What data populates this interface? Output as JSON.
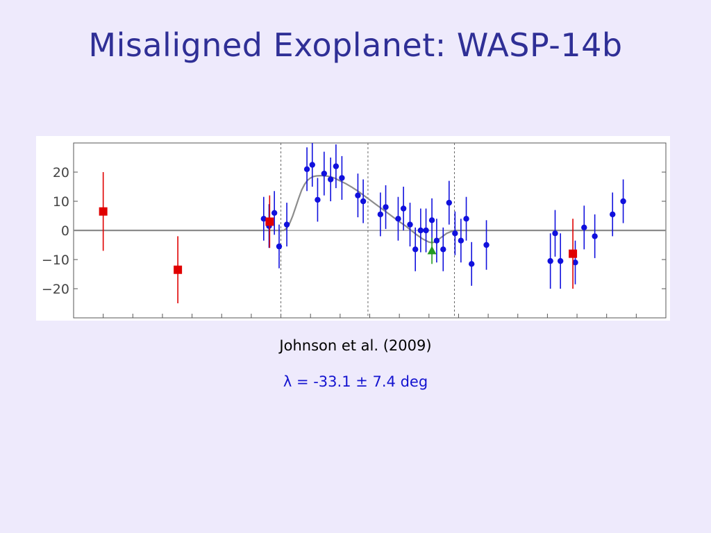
{
  "slide": {
    "title": "Misaligned Exoplanet: WASP-14b",
    "citation": "Johnson et al. (2009)",
    "lambda_text": "λ = -33.1 ± 7.4 deg"
  },
  "chart_data": {
    "type": "scatter",
    "title": "",
    "xlabel": "",
    "ylabel": "",
    "x_range": [
      0,
      100
    ],
    "ylim": [
      -30,
      30
    ],
    "yticks": [
      20,
      10,
      0,
      -10,
      -20
    ],
    "ytick_labels": [
      "20",
      "10",
      "0",
      "−10",
      "−20"
    ],
    "reference_lines_x": [
      35,
      49.7,
      64.3
    ],
    "baseline_y": 0,
    "colors": {
      "blue_points": "#1010dd",
      "red_points": "#e00000",
      "green_point": "#229922",
      "model_curve": "#8c8c8c",
      "reference_lines": "#666666"
    },
    "series": [
      {
        "marker": "circle",
        "color": "#1010dd",
        "points": [
          {
            "x": 32.1,
            "y": 4.0,
            "err": 7.5
          },
          {
            "x": 33.0,
            "y": 1.5,
            "err": 7.5
          },
          {
            "x": 33.9,
            "y": 6.0,
            "err": 7.5
          },
          {
            "x": 34.7,
            "y": -5.5,
            "err": 7.5
          },
          {
            "x": 36.0,
            "y": 2.0,
            "err": 7.5
          },
          {
            "x": 39.4,
            "y": 21.0,
            "err": 7.5
          },
          {
            "x": 40.3,
            "y": 22.5,
            "err": 7.5
          },
          {
            "x": 41.2,
            "y": 10.5,
            "err": 7.5
          },
          {
            "x": 42.3,
            "y": 19.5,
            "err": 7.5
          },
          {
            "x": 43.4,
            "y": 17.5,
            "err": 7.5
          },
          {
            "x": 44.3,
            "y": 22.0,
            "err": 7.5
          },
          {
            "x": 45.3,
            "y": 18.0,
            "err": 7.5
          },
          {
            "x": 48.0,
            "y": 12.0,
            "err": 7.5
          },
          {
            "x": 48.9,
            "y": 10.0,
            "err": 7.5
          },
          {
            "x": 51.8,
            "y": 5.5,
            "err": 7.5
          },
          {
            "x": 52.7,
            "y": 8.0,
            "err": 7.5
          },
          {
            "x": 54.8,
            "y": 4.0,
            "err": 7.5
          },
          {
            "x": 55.7,
            "y": 7.5,
            "err": 7.5
          },
          {
            "x": 56.8,
            "y": 2.0,
            "err": 7.5
          },
          {
            "x": 57.7,
            "y": -6.5,
            "err": 7.5
          },
          {
            "x": 58.6,
            "y": 0.0,
            "err": 7.5
          },
          {
            "x": 59.5,
            "y": 0.0,
            "err": 7.5
          },
          {
            "x": 60.5,
            "y": 3.5,
            "err": 7.5
          },
          {
            "x": 61.3,
            "y": -3.5,
            "err": 7.5
          },
          {
            "x": 62.4,
            "y": -6.5,
            "err": 7.5
          },
          {
            "x": 63.4,
            "y": 9.5,
            "err": 7.5
          },
          {
            "x": 64.4,
            "y": -1.0,
            "err": 7.5
          },
          {
            "x": 65.4,
            "y": -3.5,
            "err": 7.5
          },
          {
            "x": 66.3,
            "y": 4.0,
            "err": 7.5
          },
          {
            "x": 67.2,
            "y": -11.5,
            "err": 7.5
          },
          {
            "x": 69.7,
            "y": -5.0,
            "err": 8.5
          },
          {
            "x": 80.5,
            "y": -10.5,
            "err": 9.5
          },
          {
            "x": 81.3,
            "y": -1.0,
            "err": 8.0
          },
          {
            "x": 82.2,
            "y": -10.5,
            "err": 9.5
          },
          {
            "x": 84.7,
            "y": -11.0,
            "err": 7.5
          },
          {
            "x": 86.2,
            "y": 1.0,
            "err": 7.5
          },
          {
            "x": 88.0,
            "y": -2.0,
            "err": 7.5
          },
          {
            "x": 91.0,
            "y": 5.5,
            "err": 7.5
          },
          {
            "x": 92.8,
            "y": 10.0,
            "err": 7.5
          }
        ]
      },
      {
        "marker": "square",
        "color": "#e00000",
        "points": [
          {
            "x": 5.0,
            "y": 6.5,
            "err": 13.5
          },
          {
            "x": 17.6,
            "y": -13.5,
            "err": 11.5
          },
          {
            "x": 33.1,
            "y": 3.0,
            "err": 9.0
          },
          {
            "x": 84.3,
            "y": -8.0,
            "err": 12.0
          }
        ]
      },
      {
        "marker": "triangle",
        "color": "#229922",
        "points": [
          {
            "x": 60.5,
            "y": -7.0,
            "err": 4.5
          }
        ]
      }
    ],
    "model_curve": {
      "x": [
        0,
        35.5,
        36.0,
        36.5,
        37.0,
        37.5,
        38.0,
        38.5,
        39.0,
        39.5,
        40.0,
        40.5,
        41.0,
        42.0,
        43.0,
        44.0,
        45.0,
        46.0,
        47.0,
        48.0,
        49.0,
        50.0,
        51.0,
        52.0,
        53.0,
        54.0,
        55.0,
        56.0,
        57.0,
        58.0,
        59.0,
        60.0,
        60.5,
        61.0,
        62.0,
        63.0,
        64.0,
        64.3,
        80.0,
        100
      ],
      "y": [
        0,
        0,
        0.8,
        2.5,
        5.0,
        8.0,
        11.0,
        13.8,
        15.8,
        17.2,
        18.0,
        18.5,
        18.7,
        18.8,
        18.6,
        18.0,
        17.0,
        16.0,
        14.8,
        13.5,
        12.0,
        10.5,
        9.0,
        7.5,
        6.0,
        4.5,
        3.0,
        1.6,
        0.0,
        -1.6,
        -3.0,
        -4.0,
        -4.2,
        -4.0,
        -2.5,
        -1.0,
        -0.2,
        0,
        0,
        0
      ]
    }
  }
}
